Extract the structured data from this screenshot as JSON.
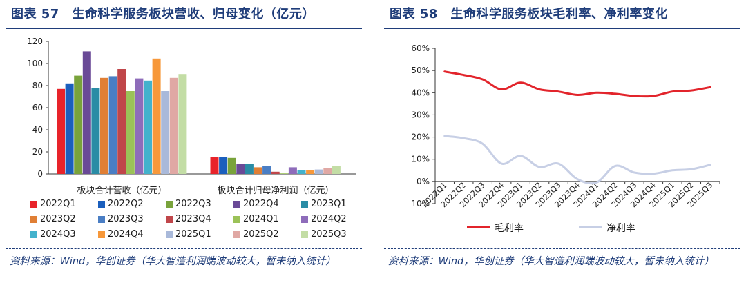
{
  "left": {
    "title": "图表 57　生命科学服务板块营收、归母变化（亿元）",
    "source": "资料来源：Wind，华创证券（华大智造利润端波动较大，暂未纳入统计）"
  },
  "right": {
    "title": "图表 58　生命科学服务板块毛利率、净利率变化",
    "source": "资料来源：Wind，华创证券（华大智造利润端波动较大，暂未纳入统计）"
  },
  "chart_data": [
    {
      "type": "bar",
      "categories": [
        "板块合计营收（亿元）",
        "板块合计归母净利润（亿元）"
      ],
      "ylim": [
        0,
        120
      ],
      "yticks": [
        "0",
        "20",
        "40",
        "60",
        "80",
        "100",
        "120"
      ],
      "grid": false,
      "legend_position": "bottom",
      "series": [
        {
          "name": "2022Q1",
          "color": "#e8232a",
          "values": [
            77,
            15.5
          ]
        },
        {
          "name": "2022Q2",
          "color": "#1b5fbd",
          "values": [
            82,
            15.5
          ]
        },
        {
          "name": "2022Q3",
          "color": "#79a33b",
          "values": [
            89,
            14.5
          ]
        },
        {
          "name": "2022Q4",
          "color": "#6a4a97",
          "values": [
            111,
            9
          ]
        },
        {
          "name": "2023Q1",
          "color": "#2a8ca5",
          "values": [
            77.5,
            9
          ]
        },
        {
          "name": "2023Q2",
          "color": "#e07f35",
          "values": [
            87,
            6
          ]
        },
        {
          "name": "2023Q3",
          "color": "#4a7ec4",
          "values": [
            88.5,
            7.5
          ]
        },
        {
          "name": "2023Q4",
          "color": "#c0464a",
          "values": [
            95,
            2
          ]
        },
        {
          "name": "2024Q1",
          "color": "#9bc258",
          "values": [
            75,
            0.5
          ]
        },
        {
          "name": "2024Q2",
          "color": "#8e6cba",
          "values": [
            86.5,
            6
          ]
        },
        {
          "name": "2024Q3",
          "color": "#43b2cc",
          "values": [
            84.5,
            3.5
          ]
        },
        {
          "name": "2024Q4",
          "color": "#f7983a",
          "values": [
            104.5,
            3.5
          ]
        },
        {
          "name": "2025Q1",
          "color": "#a9b9da",
          "values": [
            75,
            4
          ]
        },
        {
          "name": "2025Q2",
          "color": "#e0a8a4",
          "values": [
            87,
            5
          ]
        },
        {
          "name": "2025Q3",
          "color": "#c3dda5",
          "values": [
            90.5,
            7
          ]
        }
      ]
    },
    {
      "type": "line",
      "x": [
        "2022Q1",
        "2022Q2",
        "2022Q3",
        "2022Q4",
        "2023Q1",
        "2023Q2",
        "2023Q3",
        "2023Q4",
        "2024Q1",
        "2024Q2",
        "2024Q3",
        "2024Q4",
        "2025Q1",
        "2025Q2",
        "2025Q3"
      ],
      "ylim": [
        -10,
        60
      ],
      "yticks": [
        "-10%",
        "0%",
        "10%",
        "20%",
        "30%",
        "40%",
        "50%",
        "60%"
      ],
      "grid": false,
      "legend_position": "bottom",
      "series": [
        {
          "name": "毛利率",
          "color": "#e2242b",
          "values": [
            49.5,
            48,
            46,
            41.5,
            44.5,
            41.5,
            40.5,
            39,
            40,
            39.5,
            38.5,
            38.5,
            40.5,
            41,
            42.5
          ]
        },
        {
          "name": "净利率",
          "color": "#c7cfe5",
          "values": [
            20.5,
            19.5,
            17,
            8,
            11.5,
            6.5,
            8,
            1,
            -0.5,
            7,
            4,
            3.5,
            5,
            5.5,
            7.5
          ]
        }
      ]
    }
  ]
}
